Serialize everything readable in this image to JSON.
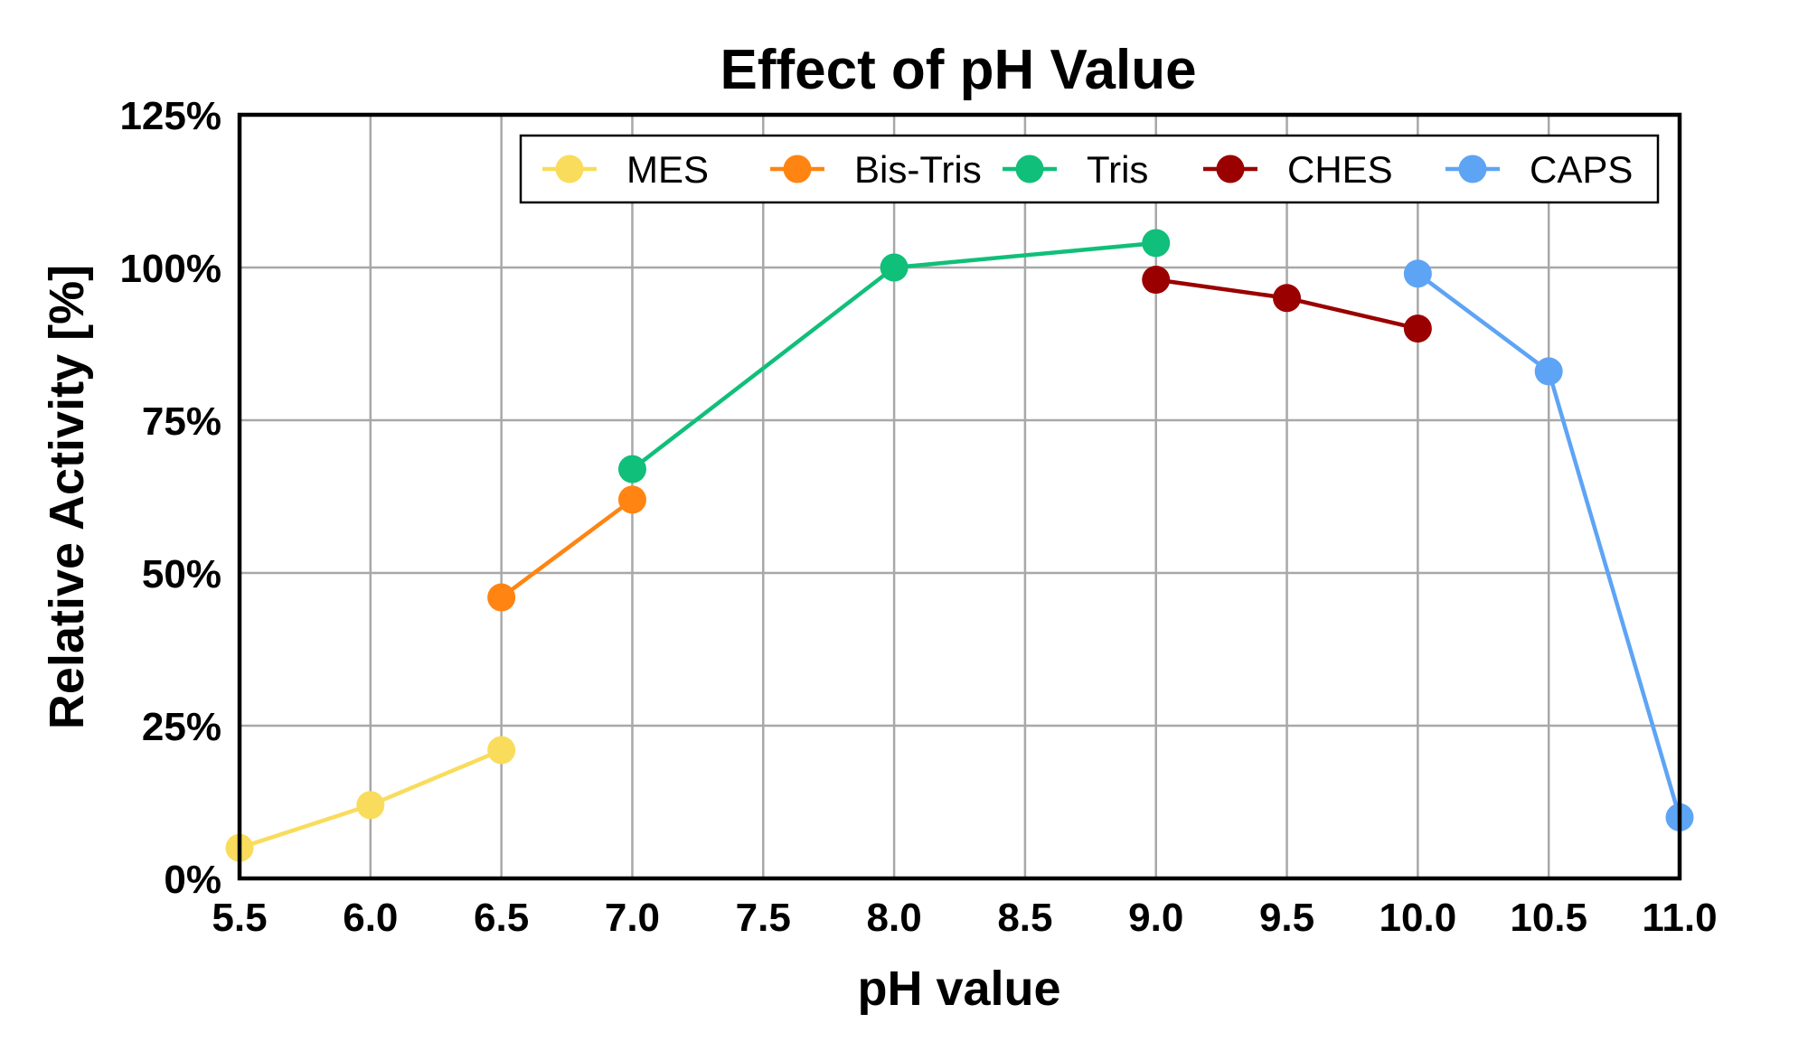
{
  "chart_data": {
    "type": "line",
    "title": "Effect of pH Value",
    "xlabel": "pH value",
    "ylabel": "Relative Activity [%]",
    "xlim": [
      5.5,
      11.0
    ],
    "ylim": [
      0,
      125
    ],
    "x_ticks": [
      "5.5",
      "6.0",
      "6.5",
      "7.0",
      "7.5",
      "8.0",
      "8.5",
      "9.0",
      "9.5",
      "10.0",
      "10.5",
      "11.0"
    ],
    "y_ticks": [
      "0%",
      "25%",
      "50%",
      "75%",
      "100%",
      "125%"
    ],
    "grid": true,
    "legend_position": "top-right",
    "series": [
      {
        "name": "MES",
        "color": "#f9dc5c",
        "x": [
          5.5,
          6.0,
          6.5
        ],
        "y": [
          5,
          12,
          21
        ]
      },
      {
        "name": "Bis-Tris",
        "color": "#ff8412",
        "x": [
          6.5,
          7.0
        ],
        "y": [
          46,
          62
        ]
      },
      {
        "name": "Tris",
        "color": "#10bf79",
        "x": [
          7.0,
          8.0,
          9.0
        ],
        "y": [
          67,
          100,
          104
        ]
      },
      {
        "name": "CHES",
        "color": "#9b0000",
        "x": [
          9.0,
          9.5,
          10.0
        ],
        "y": [
          98,
          95,
          90
        ]
      },
      {
        "name": "CAPS",
        "color": "#5ea4f5",
        "x": [
          10.0,
          10.5,
          11.0
        ],
        "y": [
          99,
          83,
          10
        ]
      }
    ]
  }
}
